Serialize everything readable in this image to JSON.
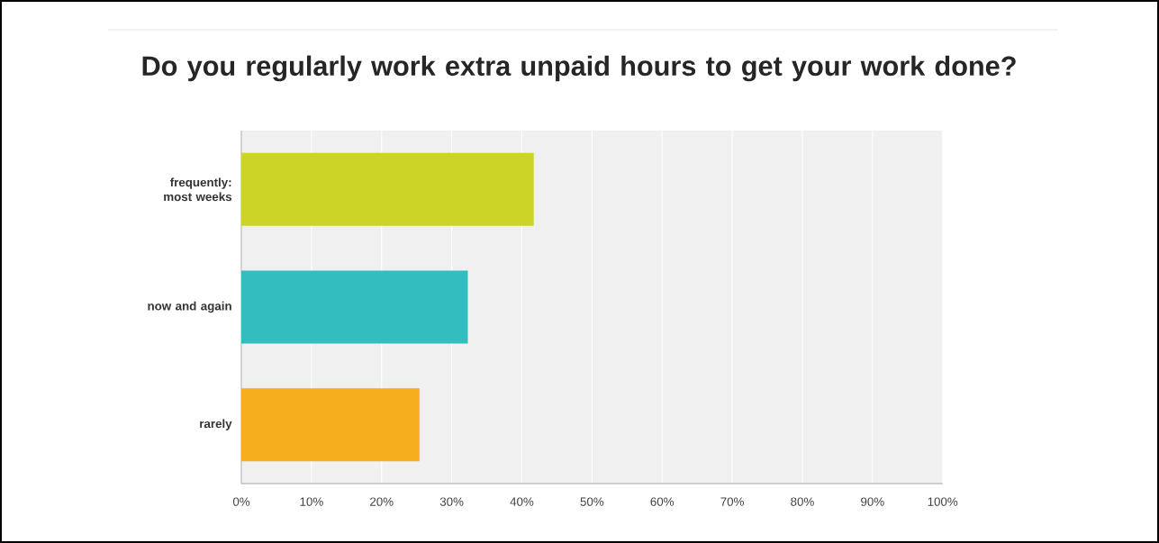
{
  "chart_data": {
    "type": "bar",
    "orientation": "horizontal",
    "title": "Do you regularly work extra unpaid hours to get your work done?",
    "categories": [
      "frequently: most weeks",
      "now and again",
      "rarely"
    ],
    "values": [
      41.7,
      32.3,
      25.4
    ],
    "colors": [
      "#cbd427",
      "#33bdbf",
      "#f6ae1f"
    ],
    "xlim": [
      0,
      100
    ],
    "xticks": [
      {
        "value": 0,
        "label": "0%"
      },
      {
        "value": 10,
        "label": "10%"
      },
      {
        "value": 20,
        "label": "20%"
      },
      {
        "value": 30,
        "label": "30%"
      },
      {
        "value": 40,
        "label": "40%"
      },
      {
        "value": 50,
        "label": "50%"
      },
      {
        "value": 60,
        "label": "60%"
      },
      {
        "value": 70,
        "label": "70%"
      },
      {
        "value": 80,
        "label": "80%"
      },
      {
        "value": 90,
        "label": "90%"
      },
      {
        "value": 100,
        "label": "100%"
      }
    ],
    "grid": "x"
  }
}
